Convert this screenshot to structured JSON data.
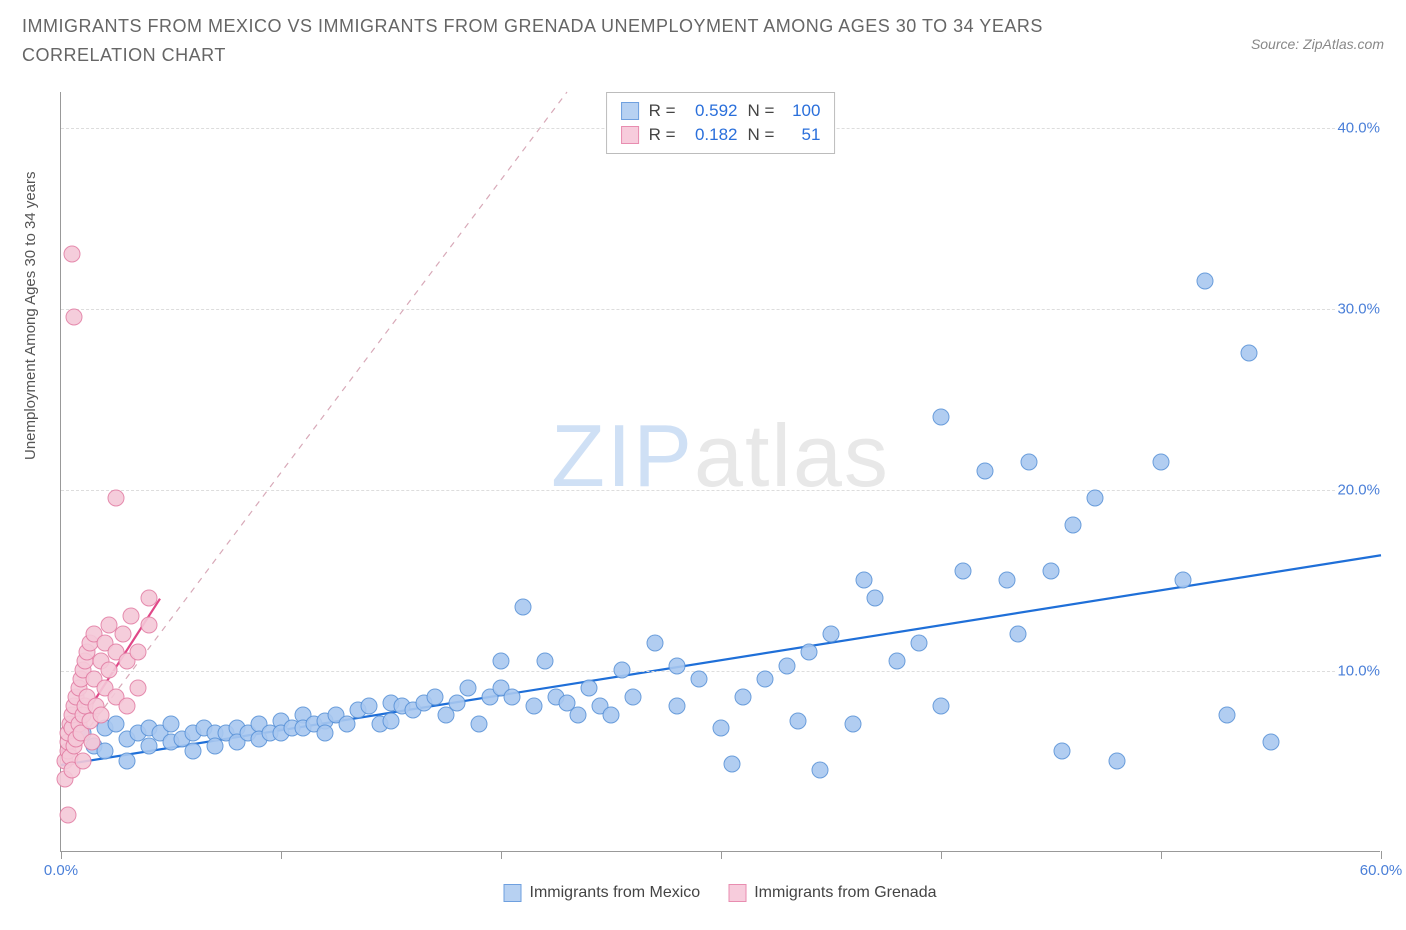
{
  "title": "IMMIGRANTS FROM MEXICO VS IMMIGRANTS FROM GRENADA UNEMPLOYMENT AMONG AGES 30 TO 34 YEARS CORRELATION CHART",
  "source": "Source: ZipAtlas.com",
  "y_axis_label": "Unemployment Among Ages 30 to 34 years",
  "watermark_a": "ZIP",
  "watermark_b": "atlas",
  "chart": {
    "type": "scatter",
    "background_color": "#ffffff",
    "grid_color": "#dddddd",
    "axis_color": "#999999",
    "xlim": [
      0,
      60
    ],
    "ylim": [
      0,
      42
    ],
    "xticks": [
      0,
      10,
      20,
      30,
      40,
      50,
      60
    ],
    "xtick_labels": {
      "0": "0.0%",
      "60": "60.0%"
    },
    "yticks": [
      10,
      20,
      30,
      40
    ],
    "ytick_labels": {
      "10": "10.0%",
      "20": "20.0%",
      "30": "30.0%",
      "40": "40.0%"
    },
    "tick_label_color": "#4a7fd8",
    "tick_label_fontsize": 15,
    "marker_radius": 8.5,
    "marker_stroke_width": 1.2,
    "marker_fill_opacity": 0.28,
    "series": [
      {
        "name": "Immigrants from Mexico",
        "color_fill": "#a9c8f0",
        "color_stroke": "#5a93d8",
        "legend_fill": "#b7d1f2",
        "legend_stroke": "#6fa0df",
        "R": "0.592",
        "N": "100",
        "trend": {
          "x1": 0,
          "y1": 4.8,
          "x2": 60,
          "y2": 16.4,
          "color": "#1f6fd8",
          "width": 2.2,
          "dash": "none",
          "extrap": {
            "x1": 0,
            "y1": 4.8,
            "x2": 23,
            "y2": 42,
            "color": "#d8a9b8"
          }
        },
        "points": [
          [
            1,
            6.5
          ],
          [
            1.5,
            5.8
          ],
          [
            2,
            6.8
          ],
          [
            2,
            5.5
          ],
          [
            2.5,
            7
          ],
          [
            3,
            6.2
          ],
          [
            3,
            5
          ],
          [
            3.5,
            6.5
          ],
          [
            4,
            6.8
          ],
          [
            4,
            5.8
          ],
          [
            4.5,
            6.5
          ],
          [
            5,
            6
          ],
          [
            5,
            7
          ],
          [
            5.5,
            6.2
          ],
          [
            6,
            6.5
          ],
          [
            6,
            5.5
          ],
          [
            6.5,
            6.8
          ],
          [
            7,
            6.5
          ],
          [
            7,
            5.8
          ],
          [
            7.5,
            6.5
          ],
          [
            8,
            6.8
          ],
          [
            8,
            6
          ],
          [
            8.5,
            6.5
          ],
          [
            9,
            7
          ],
          [
            9,
            6.2
          ],
          [
            9.5,
            6.5
          ],
          [
            10,
            7.2
          ],
          [
            10,
            6.5
          ],
          [
            10.5,
            6.8
          ],
          [
            11,
            7.5
          ],
          [
            11,
            6.8
          ],
          [
            11.5,
            7
          ],
          [
            12,
            7.2
          ],
          [
            12,
            6.5
          ],
          [
            12.5,
            7.5
          ],
          [
            13,
            7
          ],
          [
            13.5,
            7.8
          ],
          [
            14,
            8
          ],
          [
            14.5,
            7
          ],
          [
            15,
            8.2
          ],
          [
            15,
            7.2
          ],
          [
            15.5,
            8
          ],
          [
            16,
            7.8
          ],
          [
            16.5,
            8.2
          ],
          [
            17,
            8.5
          ],
          [
            17.5,
            7.5
          ],
          [
            18,
            8.2
          ],
          [
            18.5,
            9
          ],
          [
            19,
            7
          ],
          [
            19.5,
            8.5
          ],
          [
            20,
            9
          ],
          [
            20,
            10.5
          ],
          [
            20.5,
            8.5
          ],
          [
            21,
            13.5
          ],
          [
            21.5,
            8
          ],
          [
            22,
            10.5
          ],
          [
            22.5,
            8.5
          ],
          [
            23,
            8.2
          ],
          [
            23.5,
            7.5
          ],
          [
            24,
            9
          ],
          [
            24.5,
            8
          ],
          [
            25,
            7.5
          ],
          [
            25.5,
            10
          ],
          [
            26,
            8.5
          ],
          [
            27,
            11.5
          ],
          [
            28,
            8
          ],
          [
            28,
            10.2
          ],
          [
            29,
            9.5
          ],
          [
            30,
            6.8
          ],
          [
            30.5,
            4.8
          ],
          [
            31,
            8.5
          ],
          [
            32,
            9.5
          ],
          [
            33,
            10.2
          ],
          [
            33.5,
            7.2
          ],
          [
            34,
            11
          ],
          [
            34.5,
            4.5
          ],
          [
            35,
            12
          ],
          [
            36,
            7
          ],
          [
            36.5,
            15
          ],
          [
            37,
            14
          ],
          [
            38,
            10.5
          ],
          [
            39,
            11.5
          ],
          [
            40,
            24
          ],
          [
            40,
            8
          ],
          [
            41,
            15.5
          ],
          [
            42,
            21
          ],
          [
            43,
            15
          ],
          [
            43.5,
            12
          ],
          [
            44,
            21.5
          ],
          [
            45,
            15.5
          ],
          [
            45.5,
            5.5
          ],
          [
            46,
            18
          ],
          [
            47,
            19.5
          ],
          [
            48,
            5
          ],
          [
            50,
            21.5
          ],
          [
            51,
            15
          ],
          [
            52,
            31.5
          ],
          [
            53,
            7.5
          ],
          [
            54,
            27.5
          ],
          [
            55,
            6
          ]
        ]
      },
      {
        "name": "Immigrants from Grenada",
        "color_fill": "#f5c8d8",
        "color_stroke": "#e37fa5",
        "legend_fill": "#f7ccdc",
        "legend_stroke": "#e88db0",
        "R": "0.182",
        "N": "51",
        "trend": {
          "x1": 0,
          "y1": 5.5,
          "x2": 4.5,
          "y2": 14,
          "color": "#e04888",
          "width": 2.2,
          "dash": "none"
        },
        "points": [
          [
            0.2,
            4
          ],
          [
            0.2,
            5
          ],
          [
            0.3,
            5.5
          ],
          [
            0.3,
            6
          ],
          [
            0.3,
            6.5
          ],
          [
            0.4,
            7
          ],
          [
            0.4,
            5.2
          ],
          [
            0.5,
            6.8
          ],
          [
            0.5,
            7.5
          ],
          [
            0.5,
            4.5
          ],
          [
            0.6,
            8
          ],
          [
            0.6,
            5.8
          ],
          [
            0.7,
            8.5
          ],
          [
            0.7,
            6.2
          ],
          [
            0.8,
            9
          ],
          [
            0.8,
            7
          ],
          [
            0.9,
            9.5
          ],
          [
            0.9,
            6.5
          ],
          [
            1,
            10
          ],
          [
            1,
            7.5
          ],
          [
            1,
            5
          ],
          [
            1.1,
            10.5
          ],
          [
            1.1,
            8
          ],
          [
            1.2,
            11
          ],
          [
            1.2,
            8.5
          ],
          [
            1.3,
            11.5
          ],
          [
            1.3,
            7.2
          ],
          [
            1.4,
            6
          ],
          [
            1.5,
            9.5
          ],
          [
            1.5,
            12
          ],
          [
            1.6,
            8
          ],
          [
            1.8,
            10.5
          ],
          [
            1.8,
            7.5
          ],
          [
            2,
            9
          ],
          [
            2,
            11.5
          ],
          [
            2.2,
            10
          ],
          [
            2.2,
            12.5
          ],
          [
            2.5,
            8.5
          ],
          [
            2.5,
            11
          ],
          [
            2.8,
            12
          ],
          [
            3,
            10.5
          ],
          [
            3,
            8
          ],
          [
            3.2,
            13
          ],
          [
            3.5,
            11
          ],
          [
            3.5,
            9
          ],
          [
            4,
            12.5
          ],
          [
            0.3,
            2
          ],
          [
            0.5,
            33
          ],
          [
            0.6,
            29.5
          ],
          [
            2.5,
            19.5
          ],
          [
            4,
            14
          ]
        ]
      }
    ]
  },
  "stats_box": {
    "rows": [
      {
        "swatch_fill": "#b7d1f2",
        "swatch_stroke": "#6fa0df",
        "R_label": "R =",
        "R": "0.592",
        "N_label": "N =",
        "N": "100"
      },
      {
        "swatch_fill": "#f7ccdc",
        "swatch_stroke": "#e88db0",
        "R_label": "R =",
        "R": "0.182",
        "N_label": "N =",
        "N": "  51"
      }
    ]
  },
  "bottom_legend": [
    {
      "fill": "#b7d1f2",
      "stroke": "#6fa0df",
      "label": "Immigrants from Mexico"
    },
    {
      "fill": "#f7ccdc",
      "stroke": "#e88db0",
      "label": "Immigrants from Grenada"
    }
  ]
}
